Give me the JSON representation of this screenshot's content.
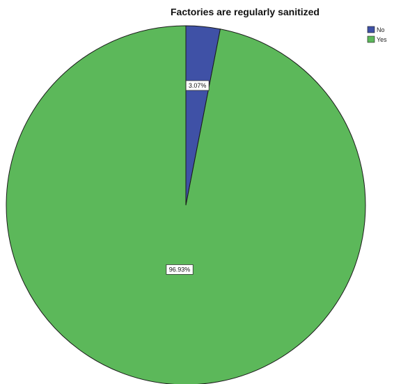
{
  "chart_data": {
    "type": "pie",
    "title": "Factories are regularly sanitized",
    "categories": [
      "No",
      "Yes"
    ],
    "values": [
      3.07,
      96.93
    ],
    "data_labels": [
      "3.07%",
      "96.93%"
    ],
    "colors": [
      "#3f51a6",
      "#5cb85a"
    ],
    "legend_position": "top-right",
    "start_angle": "12 o'clock",
    "direction": "clockwise"
  }
}
